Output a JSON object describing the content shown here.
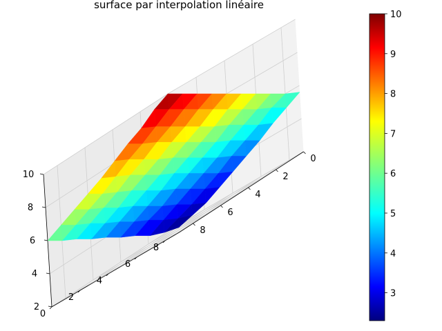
{
  "chart_data": {
    "type": "surface",
    "title": "surface par interpolation linéaire",
    "colormap": "jet",
    "colorbar": {
      "range": [
        2.3,
        10
      ],
      "ticks": [
        "3",
        "4",
        "5",
        "6",
        "7",
        "8",
        "9",
        "10"
      ]
    },
    "x_axis": {
      "ticks": [
        "0",
        "2",
        "4",
        "6",
        "8"
      ],
      "range": [
        0,
        9
      ]
    },
    "y_axis": {
      "ticks": [
        "0",
        "2",
        "4",
        "6",
        "8"
      ],
      "range": [
        0,
        9
      ]
    },
    "z_axis": {
      "ticks": [
        "2",
        "4",
        "6",
        "8",
        "10"
      ],
      "range": [
        2,
        10
      ]
    },
    "grid": true,
    "x": [
      0,
      1,
      2,
      3,
      4,
      5,
      6,
      7,
      8,
      9
    ],
    "y": [
      0,
      1,
      2,
      3,
      4,
      5,
      6,
      7,
      8,
      9
    ],
    "z": [
      [
        10.0,
        9.5,
        9.0,
        8.5,
        8.0,
        7.5,
        7.0,
        6.5,
        6.0,
        5.6
      ],
      [
        9.6,
        9.1,
        8.6,
        8.1,
        7.6,
        7.1,
        6.6,
        6.1,
        5.7,
        5.2
      ],
      [
        9.0,
        8.6,
        8.1,
        7.6,
        7.1,
        6.6,
        6.2,
        5.7,
        5.2,
        4.8
      ],
      [
        8.6,
        8.1,
        7.7,
        7.2,
        6.7,
        6.2,
        5.7,
        5.3,
        4.8,
        4.3
      ],
      [
        8.1,
        7.7,
        7.2,
        6.7,
        6.3,
        5.8,
        5.3,
        4.8,
        4.4,
        3.9
      ],
      [
        7.6,
        7.2,
        6.8,
        6.3,
        5.8,
        5.4,
        4.9,
        4.4,
        3.9,
        3.5
      ],
      [
        7.2,
        6.7,
        6.3,
        5.9,
        5.4,
        4.9,
        4.5,
        4.0,
        3.5,
        3.1
      ],
      [
        6.8,
        6.3,
        5.9,
        5.4,
        5.0,
        4.5,
        4.0,
        3.6,
        3.1,
        2.7
      ],
      [
        6.4,
        5.9,
        5.5,
        5.0,
        4.6,
        4.1,
        3.7,
        3.2,
        2.8,
        2.5
      ],
      [
        6.0,
        5.5,
        5.1,
        4.6,
        4.2,
        3.7,
        3.3,
        2.8,
        2.5,
        2.3
      ]
    ]
  }
}
